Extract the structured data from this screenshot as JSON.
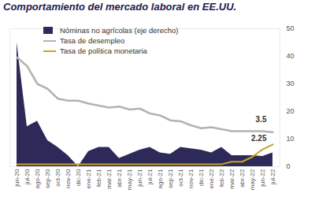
{
  "chart_data": {
    "type": "combo",
    "title": "Comportamiento del mercado laboral en EE.UU.",
    "categories": [
      "jun-20",
      "jul-20",
      "ago-20",
      "sep-20",
      "oct-20",
      "nov-20",
      "dic-20",
      "ene-21",
      "feb-21",
      "mar-21",
      "abr-21",
      "may-21",
      "jun-21",
      "jul-21",
      "ago-21",
      "sep-21",
      "oct-21",
      "nov-21",
      "dic-21",
      "ene-22",
      "feb-22",
      "mar-22",
      "abr-22",
      "may-22",
      "jun-22",
      "jul-22"
    ],
    "series": [
      {
        "name": "Nóminas no agrícolas (eje derecho)",
        "type": "area",
        "color": "#2d2a5a",
        "axis": "y2",
        "values": [
          45,
          14.5,
          16.5,
          9.5,
          7,
          4,
          0,
          5.5,
          7,
          7,
          3,
          4.5,
          6,
          7,
          5,
          4.5,
          7,
          6.5,
          6,
          5,
          7,
          4,
          4,
          4,
          3.7,
          5
        ]
      },
      {
        "name": "Tasa de desempleo",
        "type": "line",
        "color": "#b3b3b3",
        "values": [
          11.1,
          10.2,
          8.4,
          7.9,
          6.9,
          6.7,
          6.7,
          6.4,
          6.2,
          6.0,
          6.1,
          5.8,
          5.9,
          5.4,
          5.2,
          4.7,
          4.6,
          4.2,
          3.9,
          4.0,
          3.8,
          3.6,
          3.6,
          3.6,
          3.6,
          3.5
        ]
      },
      {
        "name": "Tasa de política monetaria",
        "type": "line",
        "color": "#c9a227",
        "values": [
          0.25,
          0.25,
          0.25,
          0.25,
          0.25,
          0.25,
          0.25,
          0.25,
          0.25,
          0.25,
          0.25,
          0.25,
          0.25,
          0.25,
          0.25,
          0.25,
          0.25,
          0.25,
          0.25,
          0.25,
          0.25,
          0.5,
          0.5,
          1.0,
          1.75,
          2.25
        ]
      }
    ],
    "ylim": [
      0,
      14
    ],
    "yticks": [],
    "y2lim": [
      0,
      50
    ],
    "y2ticks": [
      0,
      10,
      20,
      30,
      40,
      50
    ],
    "annotations": [
      {
        "label": "3.5",
        "x": "jul-22",
        "y": 3.5
      },
      {
        "label": "2.25",
        "x": "jul-22",
        "y": 2.25
      }
    ],
    "legend": "top-left"
  }
}
